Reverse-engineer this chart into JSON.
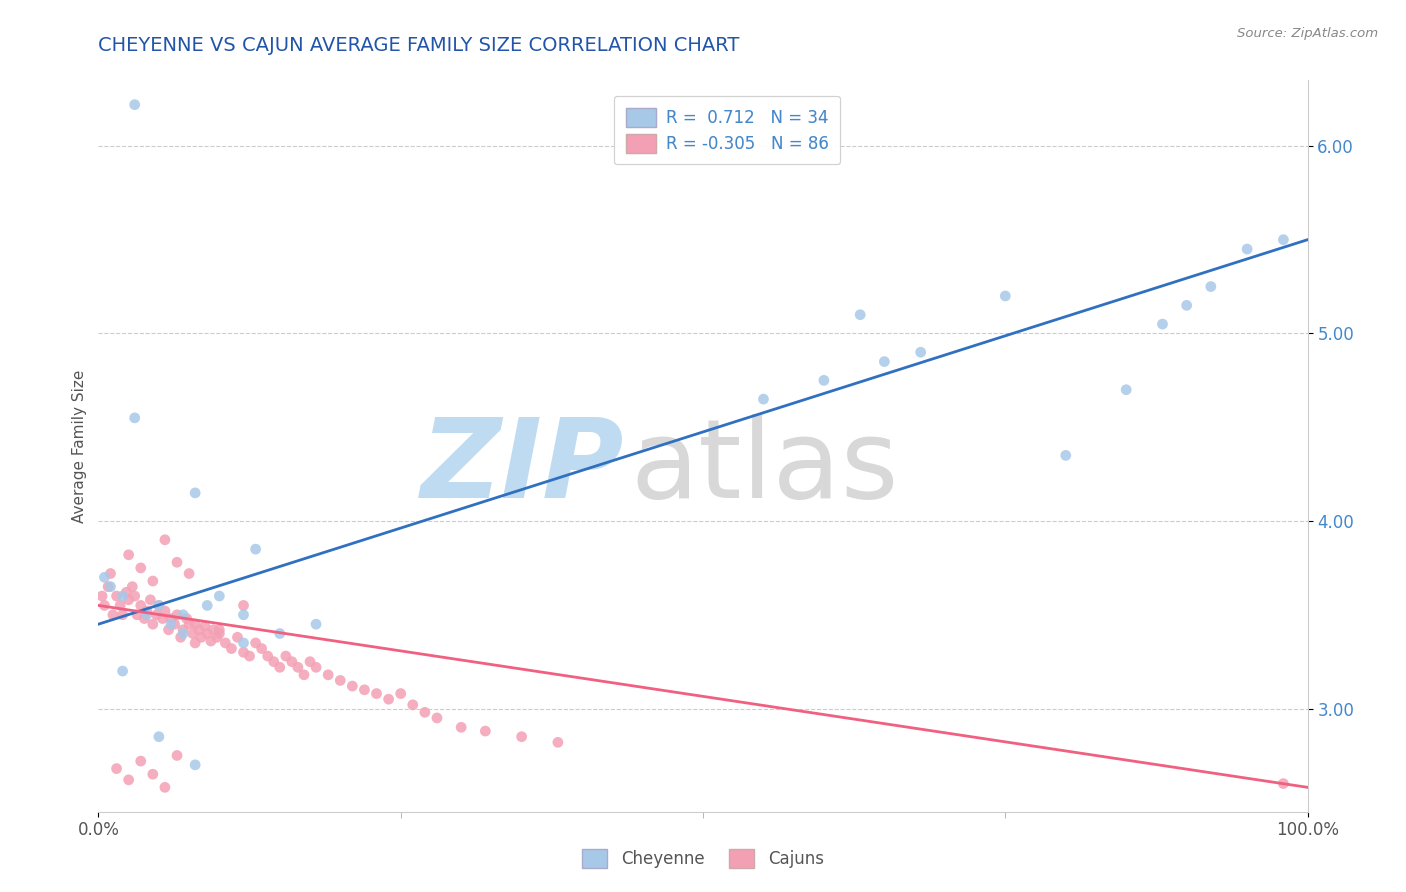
{
  "title": "CHEYENNE VS CAJUN AVERAGE FAMILY SIZE CORRELATION CHART",
  "source": "Source: ZipAtlas.com",
  "ylabel": "Average Family Size",
  "xlim": [
    0,
    100
  ],
  "ylim": [
    2.45,
    6.35
  ],
  "yticks": [
    3.0,
    4.0,
    5.0,
    6.0
  ],
  "cheyenne_color": "#a8c8e8",
  "cajun_color": "#f4a0b4",
  "cheyenne_line_color": "#3070c0",
  "cajun_line_color": "#f06080",
  "R_cheyenne": 0.712,
  "N_cheyenne": 34,
  "R_cajun": -0.305,
  "N_cajun": 86,
  "cheyenne_line_x0": 0,
  "cheyenne_line_y0": 3.45,
  "cheyenne_line_x1": 100,
  "cheyenne_line_y1": 5.5,
  "cajun_line_x0": 0,
  "cajun_line_y0": 3.55,
  "cajun_line_x1": 100,
  "cajun_line_y1": 2.58,
  "cheyenne_x": [
    3,
    8,
    13,
    0.5,
    1,
    2,
    4,
    5,
    6,
    7,
    9,
    10,
    12,
    15,
    18,
    55,
    60,
    63,
    65,
    68,
    75,
    80,
    85,
    88,
    90,
    92,
    95,
    98,
    2,
    5,
    8,
    12,
    3,
    7
  ],
  "cheyenne_y": [
    4.55,
    4.15,
    3.85,
    3.7,
    3.65,
    3.6,
    3.5,
    3.55,
    3.45,
    3.5,
    3.55,
    3.6,
    3.5,
    3.4,
    3.45,
    4.65,
    4.75,
    5.1,
    4.85,
    4.9,
    5.2,
    4.35,
    4.7,
    5.05,
    5.15,
    5.25,
    5.45,
    5.5,
    3.2,
    2.85,
    2.7,
    3.35,
    6.22,
    3.4
  ],
  "cajun_x": [
    0.3,
    0.5,
    0.8,
    1.0,
    1.2,
    1.5,
    1.8,
    2.0,
    2.3,
    2.5,
    2.8,
    3.0,
    3.2,
    3.5,
    3.8,
    4.0,
    4.3,
    4.5,
    4.8,
    5.0,
    5.3,
    5.5,
    5.8,
    6.0,
    6.3,
    6.5,
    6.8,
    7.0,
    7.3,
    7.5,
    7.8,
    8.0,
    8.3,
    8.5,
    8.8,
    9.0,
    9.3,
    9.5,
    9.8,
    10.0,
    10.5,
    11.0,
    11.5,
    12.0,
    12.5,
    13.0,
    13.5,
    14.0,
    14.5,
    15.0,
    15.5,
    16.0,
    16.5,
    17.0,
    17.5,
    18.0,
    19.0,
    20.0,
    21.0,
    22.0,
    23.0,
    24.0,
    25.0,
    26.0,
    27.0,
    28.0,
    30.0,
    32.0,
    35.0,
    38.0,
    2.5,
    3.5,
    4.5,
    5.5,
    6.5,
    7.5,
    1.5,
    2.5,
    3.5,
    4.5,
    5.5,
    6.5,
    8.0,
    10.0,
    12.0,
    98.0
  ],
  "cajun_y": [
    3.6,
    3.55,
    3.65,
    3.72,
    3.5,
    3.6,
    3.55,
    3.5,
    3.62,
    3.58,
    3.65,
    3.6,
    3.5,
    3.55,
    3.48,
    3.52,
    3.58,
    3.45,
    3.5,
    3.55,
    3.48,
    3.52,
    3.42,
    3.48,
    3.45,
    3.5,
    3.38,
    3.42,
    3.48,
    3.45,
    3.4,
    3.45,
    3.42,
    3.38,
    3.44,
    3.4,
    3.36,
    3.42,
    3.38,
    3.4,
    3.35,
    3.32,
    3.38,
    3.3,
    3.28,
    3.35,
    3.32,
    3.28,
    3.25,
    3.22,
    3.28,
    3.25,
    3.22,
    3.18,
    3.25,
    3.22,
    3.18,
    3.15,
    3.12,
    3.1,
    3.08,
    3.05,
    3.08,
    3.02,
    2.98,
    2.95,
    2.9,
    2.88,
    2.85,
    2.82,
    3.82,
    3.75,
    3.68,
    3.9,
    3.78,
    3.72,
    2.68,
    2.62,
    2.72,
    2.65,
    2.58,
    2.75,
    3.35,
    3.42,
    3.55,
    2.6
  ],
  "background_color": "#ffffff",
  "grid_color": "#cccccc",
  "title_color": "#2255aa",
  "axis_label_color": "#4488cc",
  "title_fontsize": 14,
  "axis_fontsize": 12,
  "marker_size": 60,
  "watermark_zip_color": "#b8d8f0",
  "watermark_atlas_color": "#c8c8c8"
}
